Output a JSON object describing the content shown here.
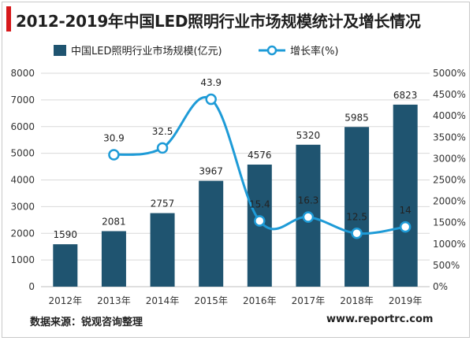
{
  "page": {
    "title": "2012-2019年中国LED照明行业市场规模统计及增长情况",
    "source": "数据来源：锐观咨询整理",
    "website": "www.reportrc.com"
  },
  "chart_data": {
    "type": "bar+line",
    "categories": [
      "2012年",
      "2013年",
      "2014年",
      "2015年",
      "2016年",
      "2017年",
      "2018年",
      "2019年"
    ],
    "series": [
      {
        "name": "中国LED照明行业市场规模(亿元)",
        "type": "bar",
        "axis": "left",
        "color": "#1f5470",
        "values": [
          1590,
          2081,
          2757,
          3967,
          4576,
          5320,
          5985,
          6823
        ],
        "labels": [
          "1590",
          "2081",
          "2757",
          "3967",
          "4576",
          "5320",
          "5985",
          "6823"
        ]
      },
      {
        "name": "增长率(%)",
        "type": "line",
        "axis": "right",
        "color": "#1e9bd7",
        "values": [
          null,
          30.9,
          32.5,
          43.9,
          15.4,
          16.3,
          12.5,
          14
        ],
        "labels": [
          "",
          "30.9",
          "32.5",
          "43.9",
          "15.4",
          "16.3",
          "12.5",
          "14"
        ]
      }
    ],
    "y_left": {
      "min": 0,
      "max": 8000,
      "ticks": [
        "0",
        "1000",
        "2000",
        "3000",
        "4000",
        "5000",
        "6000",
        "7000",
        "8000"
      ]
    },
    "y_right": {
      "min": 0,
      "max": 5000,
      "ticks": [
        "0%",
        "500%",
        "1000%",
        "1500%",
        "2000%",
        "2500%",
        "3000%",
        "3500%",
        "4000%",
        "4500%",
        "5000%"
      ]
    },
    "grid": true,
    "legend_position": "top"
  }
}
